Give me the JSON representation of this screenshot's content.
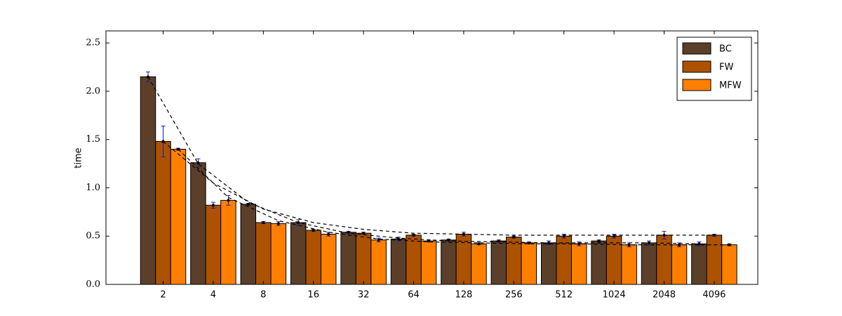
{
  "chart_data": {
    "type": "bar",
    "y_label": "time",
    "categories": [
      "2",
      "4",
      "8",
      "16",
      "32",
      "64",
      "128",
      "256",
      "512",
      "1024",
      "2048",
      "4096"
    ],
    "series": [
      {
        "name": "BC",
        "color": "#5b3f28",
        "values": [
          2.15,
          1.26,
          0.83,
          0.64,
          0.54,
          0.47,
          0.46,
          0.45,
          0.43,
          0.45,
          0.43,
          0.42
        ],
        "errors": [
          0.05,
          0.04,
          0.01,
          0.03,
          0.01,
          0.02,
          0.01,
          0.01,
          0.02,
          0.01,
          0.02,
          0.02
        ],
        "fit": [
          2.15,
          1.25,
          0.85,
          0.64,
          0.53,
          0.48,
          0.45,
          0.44,
          0.43,
          0.43,
          0.43,
          0.42
        ]
      },
      {
        "name": "FW",
        "color": "#ad5200",
        "values": [
          1.48,
          0.82,
          0.64,
          0.56,
          0.53,
          0.51,
          0.52,
          0.49,
          0.5,
          0.5,
          0.51,
          0.51
        ],
        "errors": [
          0.16,
          0.03,
          0.01,
          0.01,
          0.01,
          0.01,
          0.02,
          0.01,
          0.02,
          0.02,
          0.04,
          0.01
        ],
        "fit": [
          1.48,
          1.05,
          0.78,
          0.64,
          0.57,
          0.53,
          0.52,
          0.51,
          0.51,
          0.51,
          0.51,
          0.51
        ]
      },
      {
        "name": "MFW",
        "color": "#ff8000",
        "values": [
          1.4,
          0.87,
          0.63,
          0.52,
          0.46,
          0.45,
          0.42,
          0.43,
          0.42,
          0.41,
          0.41,
          0.41
        ],
        "errors": [
          0.01,
          0.05,
          0.02,
          0.02,
          0.02,
          0.01,
          0.01,
          0.01,
          0.02,
          0.02,
          0.02,
          0.01
        ],
        "fit": [
          1.4,
          0.9,
          0.66,
          0.54,
          0.47,
          0.44,
          0.43,
          0.42,
          0.42,
          0.41,
          0.41,
          0.41
        ]
      }
    ],
    "error_color": "#1a1aa8",
    "fit_color": "#000000",
    "ylim": [
      0,
      2.625
    ],
    "yticks": [
      {
        "value": 0,
        "label": "0.0"
      },
      0.5,
      {
        "value": 1,
        "label": "1.0"
      },
      1.5,
      {
        "value": 2,
        "label": "2.0"
      },
      2.5
    ],
    "legend": "upper right"
  }
}
